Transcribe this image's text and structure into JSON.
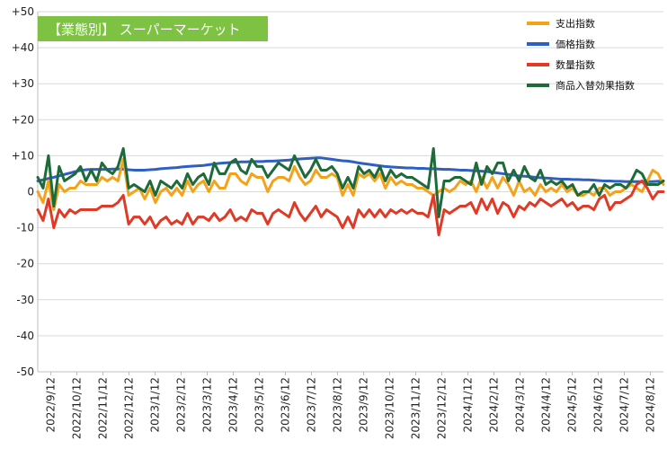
{
  "chart_data": {
    "type": "line",
    "title": "【業態別】 スーパーマーケット",
    "title_bg": "#7dc242",
    "xlabel": "",
    "ylabel": "",
    "ylim": [
      -50,
      50
    ],
    "yticks": [
      50,
      40,
      30,
      20,
      10,
      0,
      -10,
      -20,
      -30,
      -40,
      -50
    ],
    "ytick_labels": [
      "+50",
      "+40",
      "+30",
      "+20",
      "+10",
      "0",
      "-10",
      "-20",
      "-30",
      "-40",
      "-50"
    ],
    "x_labels": [
      "2022/9/12",
      "2022/10/12",
      "2022/11/12",
      "2022/12/12",
      "2023/1/12",
      "2023/2/12",
      "2023/3/12",
      "2023/4/12",
      "2023/5/12",
      "2023/6/12",
      "2023/7/12",
      "2023/8/12",
      "2023/9/12",
      "2023/10/12",
      "2023/11/12",
      "2023/12/12",
      "2024/1/12",
      "2024/2/12",
      "2024/3/12",
      "2024/4/12",
      "2024/5/12",
      "2024/6/12",
      "2024/7/12",
      "2024/8/12"
    ],
    "grid": true,
    "legend_position": "top-right",
    "series": [
      {
        "name": "支出指数",
        "color": "#f5a21b",
        "values": [
          0,
          -3,
          3,
          -5,
          2,
          0,
          1,
          1,
          3,
          2,
          2,
          2,
          4,
          3,
          4,
          3,
          9,
          -1,
          0,
          1,
          -2,
          1,
          -3,
          0,
          1,
          -1,
          1,
          -1,
          3,
          0,
          2,
          3,
          0,
          3,
          1,
          1,
          5,
          5,
          3,
          2,
          5,
          4,
          4,
          0,
          3,
          4,
          4,
          3,
          7,
          4,
          2,
          3,
          6,
          4,
          4,
          5,
          4,
          -1,
          2,
          -1,
          5,
          4,
          5,
          3,
          5,
          1,
          4,
          2,
          3,
          2,
          2,
          1,
          1,
          0,
          -1,
          0,
          1,
          0,
          1,
          3,
          2,
          3,
          0,
          4,
          1,
          4,
          1,
          4,
          2,
          -1,
          3,
          0,
          1,
          -1,
          2,
          0,
          1,
          0,
          2,
          0,
          1,
          -1,
          -1,
          0,
          -1,
          1,
          1,
          -1,
          0,
          0,
          1,
          2,
          1,
          0,
          3,
          6,
          5,
          2
        ]
      },
      {
        "name": "価格指数",
        "color": "#2f5fc1",
        "values": [
          3,
          3.3,
          3.7,
          4,
          4.4,
          4.8,
          5.2,
          5.6,
          5.9,
          6.1,
          6.2,
          6.2,
          6.2,
          6.2,
          6.3,
          6.3,
          6.3,
          6.1,
          6,
          6,
          6,
          6.1,
          6.2,
          6.4,
          6.5,
          6.6,
          6.7,
          6.9,
          7,
          7.1,
          7.2,
          7.3,
          7.5,
          7.7,
          7.9,
          8,
          8.1,
          8.2,
          8.3,
          8.3,
          8.4,
          8.4,
          8.4,
          8.5,
          8.5,
          8.6,
          8.7,
          8.8,
          9,
          9.1,
          9.2,
          9.3,
          9.4,
          9.4,
          9.2,
          9,
          8.8,
          8.6,
          8.5,
          8.3,
          8,
          7.8,
          7.6,
          7.4,
          7.2,
          7,
          6.9,
          6.8,
          6.7,
          6.6,
          6.6,
          6.5,
          6.5,
          6.4,
          6.4,
          6.3,
          6.2,
          6.2,
          6.1,
          6,
          6,
          5.9,
          5.8,
          5.7,
          5.6,
          5.4,
          5.2,
          5,
          4.8,
          4.6,
          4.4,
          4.3,
          4.2,
          4,
          3.9,
          3.8,
          3.7,
          3.6,
          3.5,
          3.5,
          3.4,
          3.4,
          3.3,
          3.3,
          3.2,
          3.1,
          3,
          3,
          2.9,
          2.9,
          2.8,
          2.8,
          2.8,
          2.8,
          2.8,
          2.8,
          2.9,
          3
        ]
      },
      {
        "name": "数量指数",
        "color": "#e03a27",
        "values": [
          -5,
          -8,
          -2,
          -10,
          -5,
          -7,
          -5,
          -6,
          -5,
          -5,
          -5,
          -5,
          -4,
          -4,
          -4,
          -3,
          -1,
          -9,
          -7,
          -7,
          -9,
          -7,
          -10,
          -8,
          -7,
          -9,
          -8,
          -9,
          -6,
          -9,
          -7,
          -7,
          -8,
          -6,
          -8,
          -7,
          -5,
          -8,
          -7,
          -8,
          -5,
          -6,
          -6,
          -9,
          -6,
          -5,
          -6,
          -7,
          -3,
          -6,
          -8,
          -6,
          -4,
          -7,
          -5,
          -6,
          -7,
          -10,
          -7,
          -10,
          -5,
          -7,
          -5,
          -7,
          -5,
          -7,
          -5,
          -6,
          -5,
          -6,
          -5,
          -6,
          -6,
          -7,
          -1,
          -12,
          -5,
          -6,
          -5,
          -4,
          -4,
          -3,
          -6,
          -2,
          -5,
          -2,
          -6,
          -3,
          -4,
          -7,
          -4,
          -5,
          -3,
          -4,
          -2,
          -3,
          -4,
          -3,
          -2,
          -4,
          -3,
          -5,
          -4,
          -4,
          -5,
          -2,
          -1,
          -5,
          -3,
          -3,
          -2,
          -1,
          2,
          3,
          1,
          -2,
          0,
          0
        ]
      },
      {
        "name": "商品入替効果指数",
        "color": "#1e6b3a",
        "values": [
          4,
          1,
          10,
          -4,
          7,
          3,
          4,
          5,
          7,
          3,
          6,
          3,
          8,
          6,
          5,
          7,
          12,
          1,
          2,
          1,
          0,
          3,
          -1,
          3,
          2,
          1,
          3,
          1,
          5,
          2,
          4,
          5,
          2,
          8,
          5,
          5,
          8,
          9,
          6,
          5,
          9,
          7,
          7,
          4,
          6,
          8,
          7,
          6,
          10,
          7,
          4,
          6,
          9,
          6,
          6,
          7,
          5,
          1,
          4,
          1,
          7,
          5,
          6,
          4,
          7,
          3,
          6,
          4,
          5,
          4,
          4,
          3,
          2,
          1,
          12,
          -7,
          3,
          3,
          4,
          4,
          3,
          2,
          8,
          2,
          7,
          5,
          8,
          8,
          3,
          6,
          3,
          7,
          4,
          3,
          6,
          2,
          3,
          2,
          3,
          1,
          2,
          -1,
          0,
          0,
          2,
          -1,
          2,
          1,
          2,
          2,
          1,
          3,
          6,
          5,
          2,
          2,
          2,
          3
        ]
      }
    ]
  }
}
